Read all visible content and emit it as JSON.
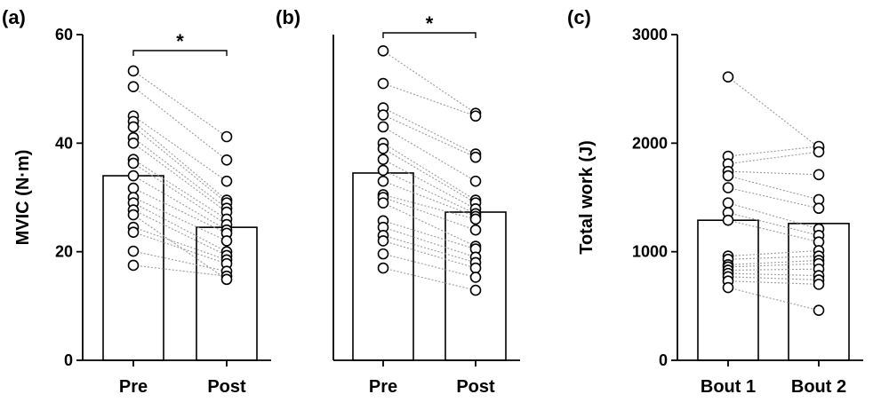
{
  "colors": {
    "ink": "#000000",
    "pair_line": "#9a9a9a",
    "bar_fill": "#ffffff",
    "marker_fill": "#ffffff"
  },
  "chart_data": [
    {
      "type": "bar",
      "panel_label": "(a)",
      "ylabel": "MVIC (N·m)",
      "ylim": [
        0,
        60
      ],
      "yticks": [
        0,
        20,
        40,
        60
      ],
      "categories": [
        "Pre",
        "Post"
      ],
      "values": [
        34,
        24.5
      ],
      "significance": "*",
      "paired_points": [
        [
          53.3,
          41.2
        ],
        [
          50.4,
          36.9
        ],
        [
          45.0,
          33.0
        ],
        [
          44.0,
          29.5
        ],
        [
          43.0,
          29.0
        ],
        [
          41.0,
          28.0
        ],
        [
          40.0,
          27.3
        ],
        [
          37.0,
          26.0
        ],
        [
          36.3,
          25.0
        ],
        [
          34.0,
          24.0
        ],
        [
          31.7,
          23.4
        ],
        [
          30.0,
          22.0
        ],
        [
          29.0,
          20.0
        ],
        [
          27.7,
          19.3
        ],
        [
          24.5,
          18.5
        ],
        [
          23.6,
          17.8
        ],
        [
          20.1,
          16.4
        ],
        [
          17.5,
          15.5
        ],
        [
          26.8,
          14.9
        ]
      ]
    },
    {
      "type": "bar",
      "panel_label": "(b)",
      "ylabel": "",
      "ylim": [
        0,
        60
      ],
      "yticks": [],
      "categories": [
        "Pre",
        "Post"
      ],
      "values": [
        34.5,
        27.3
      ],
      "significance": "*",
      "paired_points": [
        [
          57.0,
          45.5
        ],
        [
          51.0,
          45.0
        ],
        [
          46.5,
          38.0
        ],
        [
          45.2,
          37.4
        ],
        [
          43.0,
          33.0
        ],
        [
          40.0,
          29.5
        ],
        [
          39.0,
          29.0
        ],
        [
          37.0,
          27.9
        ],
        [
          35.0,
          27.0
        ],
        [
          33.0,
          26.5
        ],
        [
          30.5,
          26.0
        ],
        [
          30.0,
          24.0
        ],
        [
          29.0,
          21.0
        ],
        [
          25.7,
          20.5
        ],
        [
          24.5,
          19.0
        ],
        [
          23.0,
          18.0
        ],
        [
          22.0,
          17.0
        ],
        [
          19.6,
          15.3
        ],
        [
          17.0,
          12.9
        ]
      ]
    },
    {
      "type": "bar",
      "panel_label": "(c)",
      "ylabel": "Total work (J)",
      "ylim": [
        0,
        3000
      ],
      "yticks": [
        0,
        1000,
        2000,
        3000
      ],
      "categories": [
        "Bout 1",
        "Bout 2"
      ],
      "values": [
        1290,
        1260
      ],
      "significance": "",
      "paired_points": [
        [
          2610,
          1960
        ],
        [
          1880,
          1970
        ],
        [
          1810,
          1920
        ],
        [
          1740,
          1710
        ],
        [
          1700,
          1480
        ],
        [
          1590,
          1400
        ],
        [
          1450,
          1210
        ],
        [
          1360,
          1150
        ],
        [
          1290,
          1090
        ],
        [
          960,
          1010
        ],
        [
          930,
          960
        ],
        [
          880,
          920
        ],
        [
          860,
          890
        ],
        [
          830,
          840
        ],
        [
          800,
          780
        ],
        [
          770,
          740
        ],
        [
          730,
          700
        ],
        [
          670,
          460
        ]
      ]
    }
  ]
}
